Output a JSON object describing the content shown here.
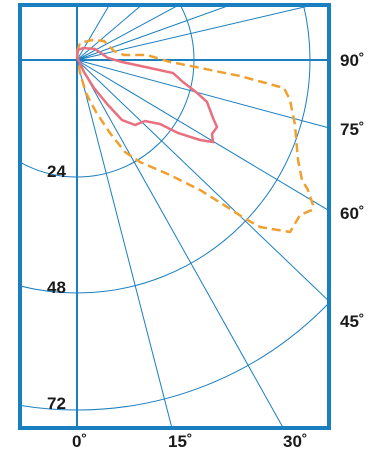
{
  "colors": {
    "frame": "#1a7fc1",
    "grid": "#1a7fc1",
    "inner_region": "#e8707f",
    "outer_region": "#f0a030",
    "text": "#1a1a1a"
  },
  "angle_labels": [
    "90˚",
    "75˚",
    "60˚",
    "45˚"
  ],
  "radius_labels": [
    "24",
    "48",
    "72"
  ],
  "bottom_labels": [
    "0˚",
    "15˚",
    "30˚"
  ],
  "legend": {
    "solid_line": "pink solid outline",
    "dashed_line": "orange dashed outline"
  }
}
